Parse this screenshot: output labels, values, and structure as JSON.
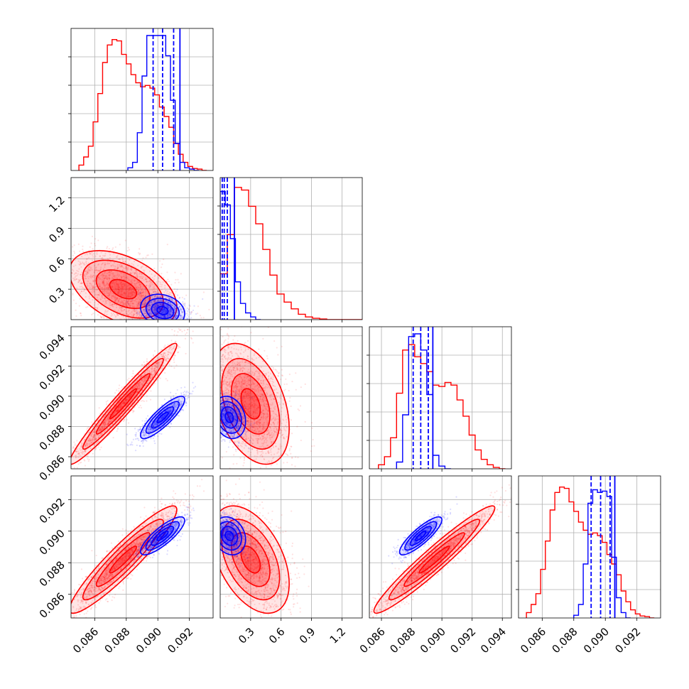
{
  "chart_data": {
    "type": "corner",
    "grid": true,
    "parameters": [
      {
        "range": [
          0.0845,
          0.0935
        ],
        "ticks": [
          0.086,
          0.088,
          0.09,
          0.092
        ],
        "tick_labels": [
          "0.086",
          "0.088",
          "0.090",
          "0.092"
        ]
      },
      {
        "range": [
          0.0,
          1.4
        ],
        "ticks": [
          0.3,
          0.6,
          0.9,
          1.2
        ],
        "tick_labels": [
          "0.3",
          "0.6",
          "0.9",
          "1.2"
        ]
      },
      {
        "range": [
          0.0852,
          0.0946
        ],
        "ticks": [
          0.086,
          0.088,
          0.09,
          0.092,
          0.094
        ],
        "tick_labels": [
          "0.086",
          "0.088",
          "0.090",
          "0.092",
          "0.094"
        ]
      },
      {
        "range": [
          0.0845,
          0.0935
        ],
        "ticks": [
          0.086,
          0.088,
          0.09,
          0.092
        ],
        "tick_labels": [
          "0.086",
          "0.088",
          "0.090",
          "0.092"
        ]
      }
    ],
    "series": [
      {
        "color": "#ff0000",
        "means": [
          0.0878,
          0.3,
          0.0895,
          0.0882
        ],
        "sds": [
          0.0017,
          0.19,
          0.002,
          0.0017
        ],
        "corr": [
          [
            1,
            -0.45,
            0.97,
            0.93
          ],
          [
            -0.45,
            1,
            -0.4,
            -0.45
          ],
          [
            0.97,
            -0.4,
            1,
            0.96
          ],
          [
            0.93,
            -0.45,
            0.96,
            1
          ]
        ],
        "hist": [
          {
            "edges": [
              0.085,
              0.0853,
              0.0856,
              0.0859,
              0.0862,
              0.0865,
              0.0868,
              0.0871,
              0.0874,
              0.0877,
              0.088,
              0.0883,
              0.0886,
              0.0889,
              0.0892,
              0.0895,
              0.0898,
              0.0901,
              0.0904,
              0.0907,
              0.091,
              0.0913,
              0.0916,
              0.0919,
              0.0922,
              0.0925,
              0.0928,
              0.0931
            ],
            "counts": [
              0.04,
              0.1,
              0.18,
              0.36,
              0.57,
              0.8,
              0.93,
              0.97,
              0.96,
              0.86,
              0.79,
              0.71,
              0.65,
              0.62,
              0.63,
              0.61,
              0.56,
              0.47,
              0.4,
              0.32,
              0.2,
              0.12,
              0.06,
              0.03,
              0.015,
              0.01,
              0.0
            ]
          },
          {
            "edges": [
              0.0,
              0.07,
              0.14,
              0.21,
              0.28,
              0.35,
              0.42,
              0.49,
              0.56,
              0.63,
              0.7,
              0.77,
              0.84,
              0.91,
              0.98,
              1.05,
              1.12,
              1.19,
              1.26,
              1.33,
              1.4
            ],
            "counts": [
              0.34,
              0.63,
              0.98,
              0.96,
              0.84,
              0.71,
              0.52,
              0.33,
              0.19,
              0.13,
              0.08,
              0.04,
              0.02,
              0.01,
              0.005,
              0.0,
              0.0,
              0.0,
              0.0,
              0.0
            ]
          },
          {
            "edges": [
              0.0858,
              0.0862,
              0.0866,
              0.087,
              0.0874,
              0.0878,
              0.0882,
              0.0886,
              0.089,
              0.0894,
              0.0898,
              0.0902,
              0.0906,
              0.091,
              0.0914,
              0.0918,
              0.0922,
              0.0926,
              0.093,
              0.0934,
              0.0938,
              0.0942
            ],
            "counts": [
              0.03,
              0.09,
              0.23,
              0.56,
              0.88,
              0.92,
              0.83,
              0.78,
              0.72,
              0.62,
              0.61,
              0.64,
              0.62,
              0.51,
              0.39,
              0.25,
              0.14,
              0.07,
              0.03,
              0.01,
              0.0
            ]
          },
          {
            "edges": [
              0.085,
              0.0853,
              0.0856,
              0.0859,
              0.0862,
              0.0865,
              0.0868,
              0.0871,
              0.0874,
              0.0877,
              0.088,
              0.0883,
              0.0886,
              0.0889,
              0.0892,
              0.0895,
              0.0898,
              0.0901,
              0.0904,
              0.0907,
              0.091,
              0.0913,
              0.0916,
              0.0919,
              0.0922,
              0.0925,
              0.0928,
              0.0931
            ],
            "counts": [
              0.04,
              0.1,
              0.18,
              0.36,
              0.57,
              0.8,
              0.93,
              0.97,
              0.96,
              0.86,
              0.79,
              0.71,
              0.65,
              0.62,
              0.63,
              0.61,
              0.56,
              0.47,
              0.4,
              0.32,
              0.2,
              0.12,
              0.06,
              0.03,
              0.015,
              0.01,
              0.0
            ]
          }
        ]
      },
      {
        "color": "#0000ff",
        "means": [
          0.0903,
          0.09,
          0.0886,
          0.0897
        ],
        "sds": [
          0.0007,
          0.08,
          0.0007,
          0.0006
        ],
        "corr": [
          [
            1,
            -0.2,
            0.85,
            0.82
          ],
          [
            -0.2,
            1,
            -0.2,
            -0.2
          ],
          [
            0.85,
            -0.2,
            1,
            0.85
          ],
          [
            0.82,
            -0.2,
            0.85,
            1
          ]
        ],
        "quantile_lines": [
          [
            0.0897,
            0.0903,
            0.091,
            0.0914
          ],
          [
            0.02,
            0.04,
            0.07,
            0.14
          ],
          [
            0.0881,
            0.0886,
            0.0891,
            0.0894
          ],
          [
            0.0891,
            0.0897,
            0.0903,
            0.0906
          ]
        ],
        "hist": [
          {
            "edges": [
              0.0881,
              0.0884,
              0.0887,
              0.089,
              0.0893,
              0.0896,
              0.0899,
              0.0902,
              0.0905,
              0.0908,
              0.0911,
              0.0914,
              0.0917,
              0.092,
              0.0923,
              0.0926
            ],
            "counts": [
              0.02,
              0.06,
              0.28,
              0.7,
              1.0,
              1.0,
              1.0,
              1.0,
              0.85,
              0.52,
              0.2,
              0.06,
              0.02,
              0.01,
              0.0
            ]
          },
          {
            "edges": [
              0.0,
              0.05,
              0.1,
              0.15,
              0.2,
              0.25,
              0.3,
              0.35,
              0.4
            ],
            "counts": [
              0.95,
              0.85,
              0.6,
              0.28,
              0.12,
              0.05,
              0.02,
              0.0
            ]
          },
          {
            "edges": [
              0.087,
              0.0874,
              0.0878,
              0.0882,
              0.0886,
              0.089,
              0.0894,
              0.0898,
              0.0902,
              0.0906
            ],
            "counts": [
              0.05,
              0.4,
              0.98,
              1.0,
              0.88,
              0.55,
              0.1,
              0.02,
              0.0
            ]
          },
          {
            "edges": [
              0.088,
              0.0883,
              0.0886,
              0.0889,
              0.0892,
              0.0895,
              0.0898,
              0.0901,
              0.0904,
              0.0907,
              0.091,
              0.0913,
              0.0916
            ],
            "counts": [
              0.02,
              0.1,
              0.4,
              0.85,
              0.95,
              0.93,
              0.94,
              0.9,
              0.45,
              0.15,
              0.04,
              0.0
            ]
          }
        ]
      }
    ]
  }
}
